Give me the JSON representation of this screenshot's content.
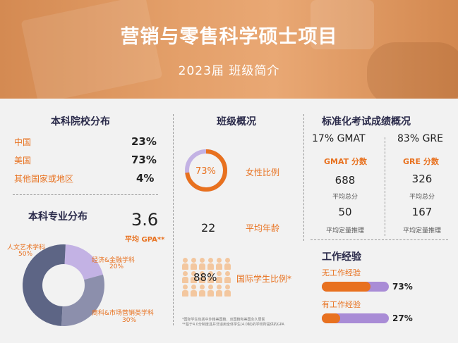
{
  "header": {
    "title": "营销与零售科学硕士项目",
    "subtitle": "2023届 班级简介"
  },
  "undergrad_school": {
    "title": "本科院校分布",
    "rows": [
      {
        "label": "中国",
        "value": "23%"
      },
      {
        "label": "美国",
        "value": "73%"
      },
      {
        "label": "其他国家或地区",
        "value": "4%"
      }
    ]
  },
  "major": {
    "title": "本科专业分布",
    "gpa_value": "3.6",
    "gpa_label": "平均 GPA**",
    "slices": [
      {
        "label": "人文艺术学科",
        "pct_label": "50%",
        "value": 50,
        "color": "#5d6585"
      },
      {
        "label": "经济&金融学科",
        "pct_label": "20%",
        "value": 20,
        "color": "#c3b2e4"
      },
      {
        "label": "商科&市场营销类学科",
        "pct_label": "30%",
        "value": 30,
        "color": "#8c8fac"
      }
    ]
  },
  "class_overview": {
    "title": "班级概况",
    "female_pct": "73%",
    "female_fraction": 0.73,
    "female_label": "女性比例",
    "age_value": "22",
    "age_label": "平均年龄",
    "intl_pct": "88%",
    "intl_label": "国际学生比例*"
  },
  "tests": {
    "title": "标准化考试成绩概况",
    "gmat_head": "17% GMAT",
    "gre_head": "83% GRE",
    "gmat_score_title": "GMAT 分数",
    "gre_score_title": "GRE 分数",
    "gmat_total": "688",
    "gmat_total_label": "平均总分",
    "gmat_quant": "50",
    "gmat_quant_label": "平均定量推理",
    "gre_total": "326",
    "gre_total_label": "平均总分",
    "gre_quant": "167",
    "gre_quant_label": "平均定量推理"
  },
  "work": {
    "title": "工作经验",
    "rows": [
      {
        "label": "无工作经验",
        "pct": "73%",
        "fraction": 0.73
      },
      {
        "label": "有工作经验",
        "pct": "27%",
        "fraction": 0.27
      }
    ]
  },
  "footnotes": {
    "line1": "*国际学生包括中外籍美国籍、双国籍和美国永久居民",
    "line2": "**基于4.0分制度且并非适用全体学生(4.0制)的学校所提供的GPA"
  },
  "colors": {
    "orange": "#e8711f",
    "purple": "#a98cd6",
    "navy": "#2a2a4a"
  }
}
